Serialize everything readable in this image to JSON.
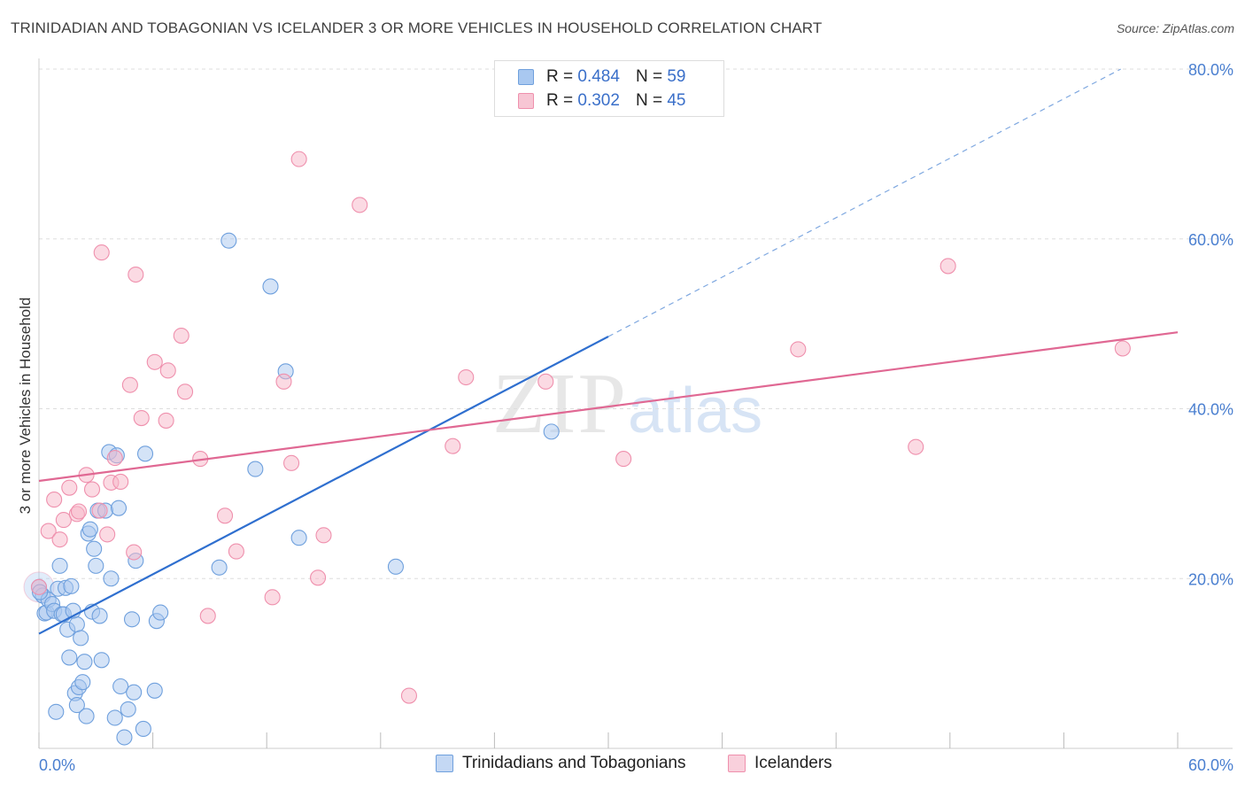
{
  "header": {
    "title": "TRINIDADIAN AND TOBAGONIAN VS ICELANDER 3 OR MORE VEHICLES IN HOUSEHOLD CORRELATION CHART",
    "source": "Source: ZipAtlas.com"
  },
  "watermark": {
    "zip": "ZIP",
    "atlas": "atlas"
  },
  "legend": {
    "rows": [
      {
        "r_label": "R =",
        "r_value": "0.484",
        "n_label": "N =",
        "n_value": "59",
        "color": "#a9c8f0"
      },
      {
        "r_label": "R =",
        "r_value": "0.302",
        "n_label": "N =",
        "n_value": "45",
        "color": "#f7b6c8"
      }
    ]
  },
  "bottom_legend": {
    "series_a": "Trinidadians and Tobagonians",
    "series_b": "Icelanders"
  },
  "colors": {
    "blue_fill": "#a9c8f0",
    "blue_stroke": "#6fa0dd",
    "blue_line": "#2f6fcf",
    "pink_fill": "#f7b6c8",
    "pink_stroke": "#ef90ad",
    "pink_line": "#e06893",
    "tick_label": "#4a7fd0",
    "grid": "#dddddd"
  },
  "chart_data": {
    "type": "scatter",
    "title": "TRINIDADIAN AND TOBAGONIAN VS ICELANDER 3 OR MORE VEHICLES IN HOUSEHOLD CORRELATION CHART",
    "xlabel": "",
    "ylabel": "3 or more Vehicles in Household",
    "xlim": [
      0,
      60
    ],
    "ylim": [
      0,
      80
    ],
    "x_tick_labels": [
      "0.0%",
      "60.0%"
    ],
    "y_ticks": [
      20,
      40,
      60,
      80
    ],
    "y_tick_labels": [
      "20.0%",
      "40.0%",
      "60.0%",
      "80.0%"
    ],
    "grid": true,
    "legend_position": "top-center",
    "series": [
      {
        "name": "Trinidadians and Tobagonians",
        "color": "#a9c8f0",
        "points": [
          [
            0.0,
            19.0
          ],
          [
            0.2,
            18.0
          ],
          [
            0.3,
            15.9
          ],
          [
            0.4,
            16.0
          ],
          [
            0.5,
            17.5
          ],
          [
            0.7,
            17.0
          ],
          [
            0.8,
            16.2
          ],
          [
            0.9,
            4.3
          ],
          [
            1.0,
            18.8
          ],
          [
            1.1,
            21.5
          ],
          [
            1.2,
            15.8
          ],
          [
            1.3,
            15.8
          ],
          [
            1.4,
            18.9
          ],
          [
            1.5,
            14.0
          ],
          [
            1.6,
            10.7
          ],
          [
            1.7,
            19.1
          ],
          [
            1.8,
            16.2
          ],
          [
            1.9,
            6.5
          ],
          [
            2.0,
            5.1
          ],
          [
            2.0,
            14.6
          ],
          [
            2.1,
            7.2
          ],
          [
            2.2,
            13.0
          ],
          [
            2.3,
            7.8
          ],
          [
            2.4,
            10.2
          ],
          [
            2.5,
            3.8
          ],
          [
            2.6,
            25.3
          ],
          [
            2.7,
            25.8
          ],
          [
            2.8,
            16.1
          ],
          [
            2.9,
            23.5
          ],
          [
            3.0,
            21.5
          ],
          [
            3.1,
            28.0
          ],
          [
            3.2,
            15.6
          ],
          [
            3.3,
            10.4
          ],
          [
            3.5,
            28.0
          ],
          [
            3.7,
            34.9
          ],
          [
            3.8,
            20.0
          ],
          [
            4.0,
            3.6
          ],
          [
            4.1,
            34.5
          ],
          [
            4.2,
            28.3
          ],
          [
            4.3,
            7.3
          ],
          [
            4.5,
            1.3
          ],
          [
            4.7,
            4.6
          ],
          [
            4.9,
            15.2
          ],
          [
            5.0,
            6.6
          ],
          [
            5.1,
            22.1
          ],
          [
            5.5,
            2.3
          ],
          [
            5.6,
            34.7
          ],
          [
            6.1,
            6.8
          ],
          [
            6.2,
            15.0
          ],
          [
            6.4,
            16.0
          ],
          [
            9.5,
            21.3
          ],
          [
            10.0,
            59.8
          ],
          [
            11.4,
            32.9
          ],
          [
            12.2,
            54.4
          ],
          [
            13.0,
            44.4
          ],
          [
            13.7,
            24.8
          ],
          [
            18.8,
            21.4
          ],
          [
            27.0,
            37.3
          ],
          [
            0.05,
            18.4
          ]
        ]
      },
      {
        "name": "Icelanders",
        "color": "#f7b6c8",
        "points": [
          [
            0.0,
            19.0
          ],
          [
            0.5,
            25.6
          ],
          [
            0.8,
            29.3
          ],
          [
            1.1,
            24.6
          ],
          [
            1.3,
            26.9
          ],
          [
            1.6,
            30.7
          ],
          [
            2.0,
            27.6
          ],
          [
            2.1,
            27.9
          ],
          [
            2.5,
            32.2
          ],
          [
            2.8,
            30.5
          ],
          [
            3.2,
            28.0
          ],
          [
            3.3,
            58.4
          ],
          [
            3.6,
            25.2
          ],
          [
            3.8,
            31.3
          ],
          [
            4.0,
            34.2
          ],
          [
            4.3,
            31.4
          ],
          [
            4.8,
            42.8
          ],
          [
            5.0,
            23.1
          ],
          [
            5.1,
            55.8
          ],
          [
            5.4,
            38.9
          ],
          [
            6.1,
            45.5
          ],
          [
            6.7,
            38.6
          ],
          [
            6.8,
            44.5
          ],
          [
            7.5,
            48.6
          ],
          [
            7.7,
            42.0
          ],
          [
            8.5,
            34.1
          ],
          [
            8.9,
            15.6
          ],
          [
            9.8,
            27.4
          ],
          [
            10.4,
            23.2
          ],
          [
            12.3,
            17.8
          ],
          [
            12.9,
            43.2
          ],
          [
            13.3,
            33.6
          ],
          [
            13.7,
            69.4
          ],
          [
            14.7,
            20.1
          ],
          [
            15.0,
            25.1
          ],
          [
            16.9,
            64.0
          ],
          [
            19.5,
            6.2
          ],
          [
            21.8,
            35.6
          ],
          [
            22.5,
            43.7
          ],
          [
            26.7,
            43.2
          ],
          [
            30.8,
            34.1
          ],
          [
            40.0,
            47.0
          ],
          [
            46.2,
            35.5
          ],
          [
            47.9,
            56.8
          ],
          [
            57.1,
            47.1
          ]
        ]
      }
    ],
    "trend_lines": [
      {
        "series": "Trinidadians and Tobagonians",
        "x_start": 0.0,
        "y_start": 13.5,
        "x_end": 30.0,
        "y_end": 48.5,
        "x_dash_end": 57.0,
        "y_dash_end": 80.0
      },
      {
        "series": "Icelanders",
        "x_start": 0.0,
        "y_start": 31.5,
        "x_end": 60.0,
        "y_end": 49.0
      }
    ]
  }
}
